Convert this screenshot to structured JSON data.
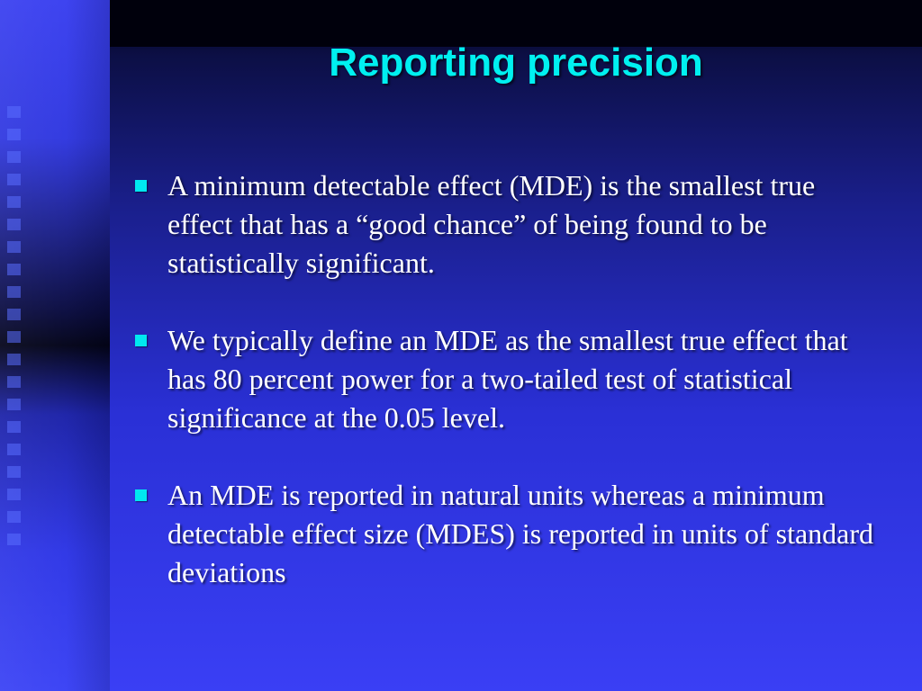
{
  "slide": {
    "title": "Reporting precision",
    "bullets": [
      "A minimum detectable effect (MDE) is the smallest true effect that has a “good chance” of being found to be statistically significant.",
      "We typically define an MDE as the smallest true effect that has 80 percent power for a two-tailed test of statistical significance at the 0.05 level.",
      "An MDE is reported in natural units whereas a minimum detectable effect size (MDES) is reported in units of standard deviations"
    ]
  },
  "colors": {
    "title": "#00f0f0",
    "bullet_marker": "#00e8f0",
    "body_text": "#ffffff",
    "background": "#2a30d6"
  },
  "icons": {
    "bullet_marker": "square-bullet-icon"
  }
}
